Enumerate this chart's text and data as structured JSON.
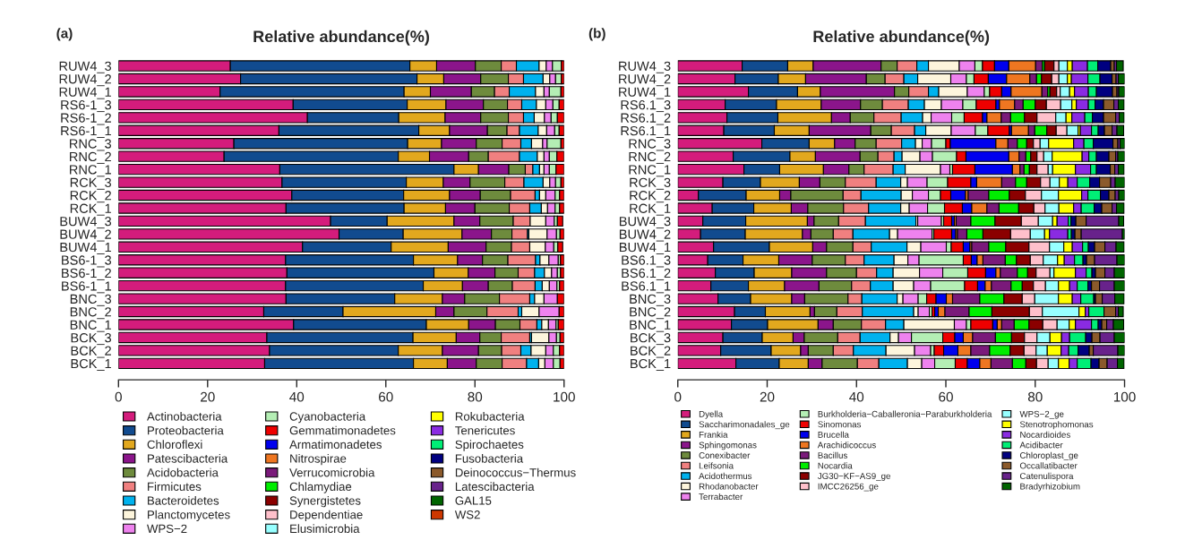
{
  "chart_data": [
    {
      "type": "bar",
      "orientation": "horizontal",
      "stacked": true,
      "title": "Relative abundance(%)",
      "annotations": [
        "(a)"
      ],
      "categories": [
        "RUW4_3",
        "RUW4_2",
        "RUW4_1",
        "RS6-1_3",
        "RS6-1_2",
        "RS6-1_1",
        "RNC_3",
        "RNC_2",
        "RNC_1",
        "RCK_3",
        "RCK_2",
        "RCK_1",
        "BUW4_3",
        "BUW4_2",
        "BUW4_1",
        "BS6-1_3",
        "BS6-1_2",
        "BS6-1_1",
        "BNC_3",
        "BNC_2",
        "BNC_1",
        "BCK_3",
        "BCK_2",
        "BCK_1"
      ],
      "xlim": [
        0,
        100
      ],
      "xticks": [
        0,
        20,
        40,
        60,
        80,
        100
      ],
      "grid": false,
      "legend": "bottom",
      "series": [
        {
          "name": "Actinobacteria",
          "color": "#d41c7c",
          "values": [
            25.1,
            27.4,
            22.8,
            39.2,
            42.4,
            36.0,
            25.9,
            23.7,
            36.2,
            36.7,
            38.9,
            37.6,
            47.6,
            49.5,
            41.3,
            37.5,
            37.8,
            37.5,
            37.6,
            32.6,
            39.3,
            33.3,
            33.9,
            32.8
          ]
        },
        {
          "name": "Proteobacteria",
          "color": "#114b8f",
          "values": [
            40.3,
            39.6,
            41.3,
            25.6,
            20.5,
            31.4,
            39.0,
            39.1,
            39.1,
            27.9,
            25.1,
            26.5,
            12.7,
            14.4,
            19.9,
            28.7,
            33.0,
            30.9,
            24.4,
            17.8,
            29.8,
            32.8,
            28.9,
            33.4
          ]
        },
        {
          "name": "Chloroflexi",
          "color": "#e2a81e",
          "values": [
            6.0,
            6.0,
            5.9,
            8.7,
            10.4,
            6.9,
            7.6,
            7.0,
            5.5,
            8.3,
            10.3,
            9.3,
            15.0,
            13.2,
            12.8,
            9.9,
            7.7,
            8.8,
            10.7,
            20.8,
            9.5,
            9.7,
            9.9,
            7.6
          ]
        },
        {
          "name": "Patescibacteria",
          "color": "#8b158b",
          "values": [
            8.7,
            8.3,
            9.2,
            8.4,
            8.0,
            8.5,
            7.8,
            8.8,
            6.8,
            6.0,
            6.9,
            6.6,
            5.8,
            6.6,
            8.5,
            5.6,
            6.0,
            5.8,
            5.0,
            4.1,
            6.0,
            5.3,
            8.1,
            6.5
          ]
        },
        {
          "name": "Acidobacteria",
          "color": "#6e8b3d",
          "values": [
            5.8,
            6.2,
            5.2,
            5.4,
            6.2,
            4.4,
            5.8,
            4.4,
            3.7,
            7.8,
            6.8,
            7.7,
            7.5,
            4.6,
            5.7,
            5.7,
            5.2,
            5.4,
            7.8,
            7.4,
            5.5,
            4.8,
            5.2,
            5.8
          ]
        },
        {
          "name": "Firmicutes",
          "color": "#f08080",
          "values": [
            3.4,
            3.4,
            3.3,
            3.2,
            3.4,
            2.8,
            4.2,
            7.0,
            1.7,
            4.3,
            5.5,
            4.6,
            3.8,
            3.5,
            4.1,
            6.2,
            3.7,
            5.1,
            6.8,
            7.0,
            3.8,
            6.4,
            4.3,
            5.5
          ]
        },
        {
          "name": "Bacteroidetes",
          "color": "#00b2ee",
          "values": [
            5.1,
            4.4,
            5.9,
            3.3,
            2.4,
            4.2,
            2.4,
            4.0,
            1.5,
            4.3,
            1.0,
            2.6,
            null,
            0.3,
            null,
            1.0,
            2.2,
            1.6,
            1.1,
            0.8,
            1.1,
            0.4,
            2.3,
            2.7
          ]
        },
        {
          "name": "Planctomycetes",
          "color": "#fdf5dc",
          "values": [
            1.6,
            1.5,
            1.9,
            2.1,
            2.3,
            1.9,
            2.5,
            1.5,
            1.0,
            1.5,
            1.4,
            1.4,
            3.5,
            4.1,
            3.5,
            2.0,
            1.6,
            1.6,
            2.1,
            3.9,
            1.5,
            3.9,
            3.3,
            1.4
          ]
        },
        {
          "name": "WPS−2",
          "color": "#ee82ee",
          "values": [
            1.4,
            1.3,
            1.2,
            1.6,
            1.5,
            1.8,
            1.0,
            1.2,
            1.2,
            1.3,
            2.1,
            1.7,
            1.9,
            2.1,
            1.9,
            2.1,
            1.3,
            1.7,
            3.0,
            4.5,
            1.7,
            1.7,
            1.7,
            1.9
          ]
        },
        {
          "name": "Cyanobacteria",
          "color": "#b4eeb4",
          "values": [
            2.0,
            1.3,
            2.6,
            1.4,
            1.4,
            1.0,
            3.1,
            1.7,
            1.5,
            1.2,
            1.0,
            1.0,
            0.7,
            0.8,
            0.9,
            0.5,
            0.7,
            0.6,
            null,
            null,
            0.5,
            0.8,
            1.4,
            1.5
          ]
        },
        {
          "name": "Gemmatimonadetes",
          "color": "#ee0000",
          "values": [
            0.6,
            0.6,
            0.7,
            1.1,
            1.5,
            1.1,
            0.7,
            1.6,
            1.8,
            0.7,
            1.0,
            1.0,
            1.2,
            0.9,
            1.1,
            0.8,
            0.8,
            1.0,
            1.5,
            1.1,
            1.3,
            0.9,
            1.0,
            0.9
          ]
        },
        {
          "name": "Armatimonadetes",
          "color": "#0000ee",
          "values": [
            null,
            null,
            null,
            null,
            null,
            null,
            null,
            null,
            null,
            null,
            null,
            null,
            null,
            null,
            null,
            null,
            null,
            null,
            null,
            null,
            null,
            null,
            null,
            null
          ]
        },
        {
          "name": "Nitrospirae",
          "color": "#ee7621",
          "values": [
            null,
            null,
            null,
            null,
            null,
            null,
            null,
            null,
            null,
            null,
            null,
            null,
            null,
            null,
            null,
            null,
            null,
            null,
            null,
            null,
            null,
            null,
            null,
            null
          ]
        },
        {
          "name": "Verrucomicrobia",
          "color": "#7a1a7a",
          "values": [
            null,
            null,
            null,
            null,
            null,
            null,
            null,
            null,
            null,
            null,
            null,
            null,
            null,
            null,
            null,
            null,
            null,
            null,
            null,
            null,
            null,
            null,
            null,
            null
          ]
        },
        {
          "name": "Chlamydiae",
          "color": "#00ee00",
          "values": [
            null,
            null,
            null,
            null,
            null,
            null,
            null,
            null,
            null,
            null,
            null,
            null,
            null,
            null,
            null,
            null,
            null,
            null,
            null,
            null,
            null,
            null,
            null,
            null
          ]
        },
        {
          "name": "Synergistetes",
          "color": "#8b0000",
          "values": [
            null,
            null,
            null,
            null,
            null,
            null,
            null,
            null,
            null,
            null,
            null,
            null,
            null,
            null,
            null,
            null,
            null,
            null,
            null,
            null,
            null,
            null,
            null,
            null
          ]
        },
        {
          "name": "Dependentiae",
          "color": "#ffc0cb",
          "values": [
            null,
            null,
            null,
            null,
            null,
            null,
            null,
            null,
            null,
            null,
            null,
            null,
            null,
            null,
            null,
            null,
            null,
            null,
            null,
            null,
            null,
            null,
            null,
            null
          ]
        },
        {
          "name": "Elusimicrobia",
          "color": "#97ffff",
          "values": [
            null,
            null,
            null,
            null,
            null,
            null,
            null,
            null,
            null,
            null,
            null,
            null,
            null,
            null,
            null,
            null,
            null,
            null,
            null,
            null,
            null,
            null,
            null,
            null
          ]
        },
        {
          "name": "Rokubacteria",
          "color": "#ffff00",
          "values": [
            null,
            null,
            null,
            null,
            null,
            null,
            null,
            null,
            null,
            null,
            null,
            null,
            null,
            null,
            null,
            null,
            null,
            null,
            null,
            null,
            null,
            null,
            null,
            null
          ]
        },
        {
          "name": "Tenericutes",
          "color": "#8a2be2",
          "values": [
            null,
            null,
            null,
            null,
            null,
            null,
            null,
            null,
            null,
            null,
            null,
            null,
            null,
            null,
            null,
            null,
            null,
            null,
            null,
            null,
            null,
            null,
            null,
            null
          ]
        },
        {
          "name": "Spirochaetes",
          "color": "#00ee76",
          "values": [
            null,
            null,
            null,
            null,
            null,
            null,
            null,
            null,
            null,
            null,
            null,
            null,
            null,
            null,
            null,
            null,
            null,
            null,
            null,
            null,
            null,
            null,
            null,
            null
          ]
        },
        {
          "name": "Fusobacteria",
          "color": "#000080",
          "values": [
            null,
            null,
            null,
            null,
            null,
            null,
            null,
            null,
            null,
            null,
            null,
            null,
            null,
            null,
            null,
            null,
            null,
            null,
            null,
            null,
            null,
            null,
            null,
            null
          ]
        },
        {
          "name": "Deinococcus−Thermus",
          "color": "#8b5a2b",
          "values": [
            null,
            null,
            null,
            null,
            null,
            null,
            null,
            null,
            null,
            null,
            null,
            null,
            null,
            null,
            null,
            null,
            null,
            null,
            null,
            null,
            null,
            null,
            null,
            null
          ]
        },
        {
          "name": "Latescibacteria",
          "color": "#68228b",
          "values": [
            null,
            null,
            null,
            null,
            null,
            null,
            null,
            null,
            null,
            null,
            null,
            null,
            null,
            null,
            null,
            null,
            null,
            null,
            null,
            null,
            null,
            null,
            null,
            null
          ]
        },
        {
          "name": "GAL15",
          "color": "#006400",
          "values": [
            null,
            null,
            null,
            null,
            null,
            null,
            null,
            null,
            null,
            null,
            null,
            null,
            null,
            null,
            null,
            null,
            null,
            null,
            null,
            null,
            null,
            null,
            null,
            null
          ]
        },
        {
          "name": "WS2",
          "color": "#cd3700",
          "values": [
            null,
            null,
            null,
            null,
            null,
            null,
            null,
            null,
            null,
            null,
            null,
            null,
            null,
            null,
            null,
            null,
            null,
            null,
            null,
            null,
            null,
            null,
            null,
            null
          ]
        }
      ]
    },
    {
      "type": "bar",
      "orientation": "horizontal",
      "stacked": true,
      "title": "Relative abundance(%)",
      "annotations": [
        "(b)"
      ],
      "categories": [
        "RUW4_3",
        "RUW4_2",
        "RUW4_1",
        "RS6.1_3",
        "RS6.1_2",
        "RS6.1_1",
        "RNC_3",
        "RNC_2",
        "RNC_1",
        "RCK_3",
        "RCK_2",
        "RCK_1",
        "BUW4_3",
        "BUW4_2",
        "BUW4_1",
        "BS6.1_3",
        "BS6.1_2",
        "BS6.1_1",
        "BNC_3",
        "BNC_2",
        "BNC_1",
        "BCK_3",
        "BCK_2",
        "BCK_1"
      ],
      "xlim": [
        0,
        100
      ],
      "xticks": [
        0,
        20,
        40,
        60,
        80,
        100
      ],
      "grid": false,
      "legend": "bottom",
      "series": [
        {
          "name": "Dyella",
          "color": "#d41c7c",
          "values": [
            14.4,
            12.8,
            15.8,
            10.6,
            11.0,
            10.3,
            18.8,
            12.4,
            14.8,
            10.1,
            4.6,
            7.7,
            5.6,
            5.1,
            8.0,
            6.7,
            8.4,
            7.4,
            9.0,
            12.7,
            12.0,
            10.1,
            9.6,
            13.0
          ]
        },
        {
          "name": "Saccharimonadales_ge",
          "color": "#114b8f",
          "values": [
            10.2,
            9.7,
            11.0,
            11.5,
            11.4,
            11.3,
            10.6,
            12.7,
            8.0,
            8.4,
            10.7,
            9.3,
            9.6,
            10.0,
            12.5,
            7.9,
            8.7,
            8.4,
            7.3,
            6.9,
            8.1,
            8.8,
            11.3,
            9.7
          ]
        },
        {
          "name": "Frankia",
          "color": "#e2a81e",
          "values": [
            5.7,
            6.1,
            5.1,
            10.0,
            12.0,
            7.8,
            5.7,
            5.7,
            9.8,
            8.7,
            7.5,
            8.4,
            13.8,
            12.8,
            9.7,
            8.0,
            8.4,
            8.1,
            9.2,
            10.0,
            11.3,
            6.9,
            6.6,
            6.5
          ]
        },
        {
          "name": "Sphingomonas",
          "color": "#8b158b",
          "values": [
            15.2,
            13.6,
            16.6,
            8.8,
            4.2,
            13.8,
            4.6,
            10.0,
            5.7,
            4.6,
            2.5,
            3.7,
            1.5,
            1.9,
            3.1,
            7.5,
            7.8,
            7.7,
            2.9,
            1.0,
            3.4,
            2.5,
            1.7,
            3.1
          ]
        },
        {
          "name": "Conexibacter",
          "color": "#6e8b3d",
          "values": [
            3.6,
            4.2,
            3.2,
            4.9,
            5.3,
            4.6,
            4.7,
            4.0,
            3.4,
            5.7,
            11.7,
            8.0,
            5.5,
            5.0,
            5.9,
            7.4,
            6.7,
            7.3,
            9.7,
            5.0,
            6.3,
            7.5,
            5.6,
            7.9
          ]
        },
        {
          "name": "Leifsonia",
          "color": "#f08080",
          "values": [
            4.4,
            4.2,
            4.4,
            5.8,
            6.1,
            5.2,
            5.7,
            3.6,
            6.5,
            6.9,
            4.0,
            5.6,
            6.0,
            4.4,
            4.1,
            4.2,
            4.5,
            4.2,
            3.1,
            5.7,
            5.4,
            5.0,
            4.5,
            4.8
          ]
        },
        {
          "name": "Acidothermus",
          "color": "#00b2ee",
          "values": [
            2.6,
            3.1,
            2.3,
            3.6,
            4.8,
            2.5,
            3.1,
            1.8,
            2.7,
            5.5,
            9.0,
            7.2,
            11.3,
            8.2,
            8.0,
            6.7,
            3.7,
            5.1,
            7.9,
            11.5,
            4.1,
            6.7,
            7.3,
            6.4
          ]
        },
        {
          "name": "Rhodanobacter",
          "color": "#fdf5dc",
          "values": [
            6.9,
            7.4,
            6.4,
            3.8,
            1.9,
            5.7,
            1.5,
            4.0,
            7.9,
            1.5,
            2.5,
            1.9,
            0.4,
            1.8,
            3.1,
            3.1,
            5.9,
            4.6,
            1.3,
            1.0,
            11.3,
            1.9,
            6.4,
            3.2
          ]
        },
        {
          "name": "Terrabacter",
          "color": "#ee82ee",
          "values": [
            3.5,
            3.5,
            3.8,
            4.8,
            4.6,
            5.4,
            2.1,
            2.8,
            2.1,
            4.4,
            3.6,
            4.1,
            5.3,
            7.7,
            5.7,
            2.5,
            5.2,
            3.8,
            3.4,
            2.5,
            2.7,
            2.9,
            3.6,
            2.9
          ]
        },
        {
          "name": "Burkholderia−Caballeronia−Paraburkholderia",
          "color": "#b4eeb4",
          "values": [
            1.7,
            1.7,
            1.2,
            3.0,
            2.8,
            2.8,
            3.2,
            5.4,
            0.6,
            4.6,
            2.7,
            3.8,
            0.5,
            0.4,
            1.1,
            9.9,
            5.6,
            7.6,
            1.9,
            0.6,
            1.0,
            7.0,
            0.8,
            4.6
          ]
        },
        {
          "name": "Sinomonas",
          "color": "#ee0000",
          "values": [
            2.7,
            3.2,
            2.7,
            4.4,
            4.1,
            4.8,
            1.0,
            2.1,
            5.0,
            5.2,
            2.3,
            4.0,
            1.8,
            4.0,
            2.7,
            1.8,
            4.0,
            2.9,
            2.1,
            0.6,
            4.9,
            2.7,
            2.1,
            2.7
          ]
        },
        {
          "name": "Brucella",
          "color": "#0000ee",
          "values": [
            3.2,
            4.1,
            2.1,
            0.8,
            1.0,
            0.5,
            10.2,
            9.6,
            8.4,
            1.3,
            3.3,
            2.1,
            0.6,
            0.9,
            1.5,
            1.3,
            2.3,
            1.7,
            2.3,
            0.8,
            1.0,
            1.9,
            3.2,
            2.8
          ]
        },
        {
          "name": "Arachidicoccus",
          "color": "#ee7621",
          "values": [
            6.0,
            5.2,
            6.9,
            3.4,
            3.2,
            3.8,
            2.7,
            2.3,
            1.7,
            5.6,
            0.6,
            3.4,
            0.4,
            0.4,
            0.4,
            1.3,
            1.0,
            1.4,
            1.4,
            1.5,
            1.0,
            2.1,
            2.9,
            2.5
          ]
        },
        {
          "name": "Bacillus",
          "color": "#7a1a7a",
          "values": [
            1.5,
            1.5,
            1.3,
            1.9,
            2.1,
            1.4,
            2.1,
            1.5,
            0.9,
            3.1,
            4.6,
            2.7,
            3.3,
            2.1,
            3.8,
            5.0,
            3.8,
            4.4,
            6.1,
            5.4,
            2.8,
            5.1,
            4.2,
            4.8
          ]
        },
        {
          "name": "Nocardia",
          "color": "#00ee00",
          "values": [
            0.5,
            1.1,
            0.5,
            2.7,
            3.1,
            2.7,
            2.1,
            1.1,
            1.2,
            2.5,
            4.6,
            4.4,
            5.4,
            3.6,
            3.8,
            2.5,
            2.3,
            2.5,
            5.4,
            5.1,
            3.3,
            3.6,
            4.6,
            3.0
          ]
        },
        {
          "name": "JG30−KF−AS9_ge",
          "color": "#8b0000",
          "values": [
            2.1,
            2.3,
            1.5,
            2.5,
            2.8,
            2.1,
            1.5,
            1.4,
            1.7,
            3.1,
            3.6,
            3.4,
            5.9,
            6.2,
            5.2,
            3.1,
            1.9,
            2.5,
            4.1,
            8.4,
            3.1,
            2.9,
            3.1,
            2.4
          ]
        },
        {
          "name": "IMCC26256_ge",
          "color": "#ffc0cb",
          "values": [
            1.1,
            1.6,
            0.8,
            3.2,
            4.2,
            2.4,
            1.5,
            1.5,
            2.5,
            2.1,
            3.6,
            2.5,
            3.8,
            4.4,
            4.6,
            2.9,
            3.1,
            2.7,
            2.8,
            2.9,
            3.2,
            2.8,
            2.7,
            2.6
          ]
        },
        {
          "name": "WPS−2_ge",
          "color": "#97ffff",
          "values": [
            1.9,
            1.9,
            2.1,
            2.5,
            2.3,
            2.5,
            1.9,
            1.9,
            1.0,
            2.1,
            3.8,
            3.1,
            3.2,
            3.2,
            3.2,
            3.2,
            0.9,
            2.9,
            5.3,
            8.2,
            2.7,
            2.9,
            2.5,
            2.3
          ]
        },
        {
          "name": "Stenotrophomonas",
          "color": "#ffff00",
          "values": [
            1.1,
            0.9,
            1.1,
            1.0,
            1.3,
            0.5,
            5.6,
            6.7,
            5.1,
            1.9,
            5.2,
            3.3,
            1.0,
            1.1,
            1.9,
            1.5,
            4.8,
            2.5,
            3.1,
            1.4,
            1.4,
            2.6,
            3.1,
            2.4
          ]
        },
        {
          "name": "Nocardioides",
          "color": "#8a2be2",
          "values": [
            3.4,
            3.7,
            3.1,
            2.7,
            2.9,
            2.5,
            2.3,
            1.5,
            3.4,
            2.1,
            1.4,
            1.7,
            2.5,
            4.1,
            2.3,
            2.3,
            2.4,
            1.7,
            1.9,
            0.8,
            3.6,
            1.8,
            1.7,
            1.8
          ]
        },
        {
          "name": "Acidibacter",
          "color": "#00ee76",
          "values": [
            2.3,
            2.7,
            1.8,
            1.5,
            1.7,
            1.5,
            2.1,
            1.7,
            1.3,
            2.8,
            2.8,
            2.9,
            0.6,
            0.8,
            1.3,
            1.9,
            1.3,
            2.4,
            2.9,
            3.4,
            1.5,
            3.6,
            2.1,
            3.1
          ]
        },
        {
          "name": "Chloroplast_ge",
          "color": "#000080",
          "values": [
            2.9,
            2.7,
            3.6,
            1.9,
            2.5,
            1.4,
            4.4,
            2.8,
            3.1,
            2.2,
            1.9,
            1.7,
            1.1,
            0.8,
            1.4,
            0.8,
            0.8,
            0.8,
            0.4,
            null,
            0.8,
            1.4,
            2.5,
            1.8
          ]
        },
        {
          "name": "Occallatibacter",
          "color": "#8b5a2b",
          "values": [
            0.8,
            0.9,
            1.0,
            2.3,
            2.7,
            1.7,
            1.1,
            1.5,
            1.0,
            2.5,
            1.4,
            2.3,
            2.3,
            1.4,
            2.3,
            1.8,
            2.1,
            1.8,
            1.5,
            2.6,
            1.1,
            1.8,
            0.9,
            1.8
          ]
        },
        {
          "name": "Catenulispora",
          "color": "#68228b",
          "values": [
            0.5,
            0.5,
            0.4,
            1.0,
            0.8,
            1.1,
            0.5,
            0.5,
            0.8,
            1.0,
            0.8,
            1.0,
            7.3,
            9.2,
            2.5,
            5.0,
            2.1,
            3.3,
            2.8,
            0.6,
            1.5,
            3.2,
            5.5,
            2.3
          ]
        },
        {
          "name": "Bradyrhizobium",
          "color": "#006400",
          "values": [
            1.5,
            1.4,
            1.3,
            1.3,
            1.1,
            1.5,
            1.0,
            1.5,
            1.3,
            2.1,
            1.3,
            1.7,
            1.1,
            0.5,
            1.8,
            1.7,
            2.3,
            2.3,
            2.1,
            1.1,
            2.3,
            2.3,
            1.5,
            1.5
          ]
        }
      ]
    }
  ]
}
